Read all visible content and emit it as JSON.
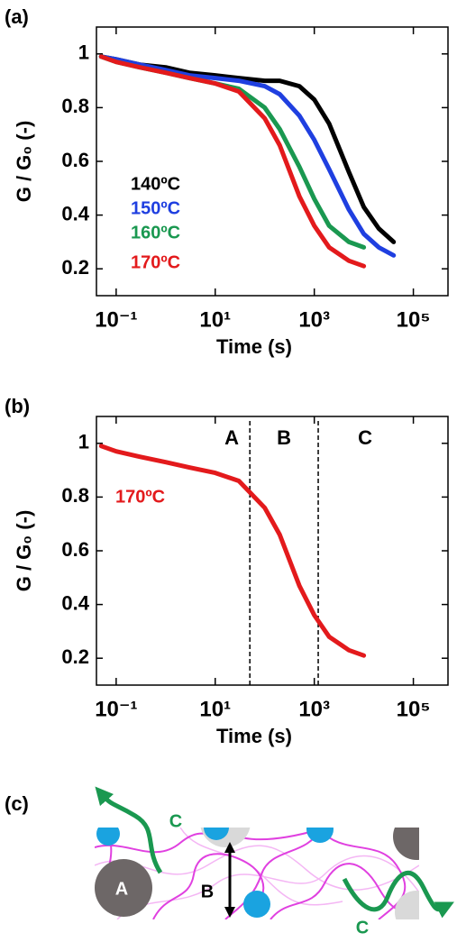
{
  "chart_data": [
    {
      "type": "line",
      "panel_label": "(a)",
      "log_x": true,
      "x": [
        0.05,
        0.1,
        0.3,
        1,
        3,
        10,
        30,
        100,
        200,
        500,
        1000,
        2000,
        5000,
        10000,
        20000,
        40000
      ],
      "series": [
        {
          "name": "140ºC",
          "color": "#000000",
          "values": [
            0.99,
            0.98,
            0.96,
            0.95,
            0.93,
            0.92,
            0.91,
            0.9,
            0.9,
            0.88,
            0.83,
            0.74,
            0.56,
            0.43,
            0.35,
            0.3
          ]
        },
        {
          "name": "150ºC",
          "color": "#1f3fe0",
          "values": [
            0.99,
            0.98,
            0.96,
            0.94,
            0.92,
            0.91,
            0.9,
            0.88,
            0.85,
            0.77,
            0.68,
            0.57,
            0.42,
            0.33,
            0.28,
            0.25
          ]
        },
        {
          "name": "160ºC",
          "color": "#1a9850",
          "values": [
            0.99,
            0.97,
            0.95,
            0.93,
            0.91,
            0.89,
            0.87,
            0.8,
            0.72,
            0.58,
            0.46,
            0.36,
            0.3,
            0.28,
            null,
            null
          ]
        },
        {
          "name": "170ºC",
          "color": "#e31a1c",
          "values": [
            0.99,
            0.97,
            0.95,
            0.93,
            0.91,
            0.89,
            0.86,
            0.76,
            0.66,
            0.47,
            0.36,
            0.28,
            0.23,
            0.21,
            null,
            null
          ]
        }
      ],
      "xlim": [
        0.04,
        500000
      ],
      "ylim": [
        0.1,
        1.1
      ],
      "xticks": [
        {
          "value": 0.1,
          "label": "10⁻¹"
        },
        {
          "value": 10,
          "label": "10¹"
        },
        {
          "value": 1000,
          "label": "10³"
        },
        {
          "value": 100000,
          "label": "10⁵"
        }
      ],
      "yticks": [
        0.2,
        0.4,
        0.6,
        0.8,
        1
      ],
      "xlabel": "Time (s)",
      "ylabel": "G / G₀ (-)"
    },
    {
      "type": "line",
      "panel_label": "(b)",
      "log_x": true,
      "x": [
        0.05,
        0.1,
        0.3,
        1,
        3,
        10,
        30,
        100,
        200,
        500,
        1000,
        2000,
        5000,
        10000
      ],
      "series": [
        {
          "name": "170ºC",
          "color": "#e31a1c",
          "values": [
            0.99,
            0.97,
            0.95,
            0.93,
            0.91,
            0.89,
            0.86,
            0.76,
            0.66,
            0.47,
            0.36,
            0.28,
            0.23,
            0.21
          ]
        }
      ],
      "vlines": [
        50,
        1200
      ],
      "annotations": [
        "A",
        "B",
        "C"
      ],
      "xlim": [
        0.04,
        500000
      ],
      "ylim": [
        0.1,
        1.1
      ],
      "xticks": [
        {
          "value": 0.1,
          "label": "10⁻¹"
        },
        {
          "value": 10,
          "label": "10¹"
        },
        {
          "value": 1000,
          "label": "10³"
        },
        {
          "value": 100000,
          "label": "10⁵"
        }
      ],
      "yticks": [
        0.2,
        0.4,
        0.6,
        0.8,
        1
      ],
      "xlabel": "Time (s)",
      "ylabel": "G / G₀ (-)"
    }
  ],
  "diagram": {
    "panel_label": "(c)",
    "labels": [
      "A",
      "B",
      "C",
      "C"
    ]
  }
}
